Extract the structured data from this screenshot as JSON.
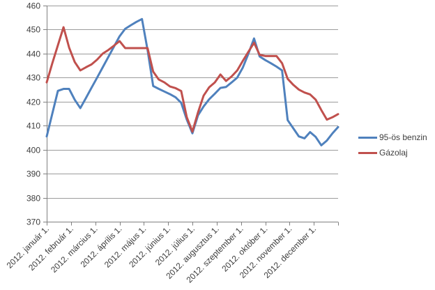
{
  "chart_data": {
    "type": "line",
    "title": "",
    "x_tick_labels": [
      "2012. január 1.",
      "2012. február 1.",
      "2012. március 1.",
      "2012. április 1.",
      "2012. május 1.",
      "2012. június 1.",
      "2012. július 1.",
      "2012. augusztus 1.",
      "2012. szeptember 1.",
      "2012. október 1.",
      "2012. november 1.",
      "2012. december 1."
    ],
    "y_ticks": [
      370,
      380,
      390,
      400,
      410,
      420,
      430,
      440,
      450,
      460
    ],
    "y_range": [
      370,
      460
    ],
    "grid": "horizontal-only",
    "legend_position": "middle-right",
    "series": [
      {
        "name": "95-ös benzin",
        "color": "#4F81BD",
        "values": [
          405.5,
          415,
          424.5,
          425.3,
          425.3,
          420.8,
          417.3,
          421.5,
          425.8,
          430,
          434.3,
          438.6,
          442.9,
          447.2,
          450.3,
          451.8,
          453.2,
          454.4,
          441.5,
          426.5,
          425.3,
          424.2,
          423.1,
          421.8,
          419.5,
          412.5,
          406.8,
          414.3,
          418,
          421,
          423.3,
          425.7,
          426.1,
          428,
          430,
          434.2,
          440,
          446.3,
          438.8,
          437.3,
          436,
          434.6,
          433,
          412.3,
          408.9,
          405.5,
          404.7,
          407.3,
          405.3,
          401.8,
          403.8,
          406.8,
          409.4
        ]
      },
      {
        "name": "Gázolaj",
        "color": "#C0504D",
        "values": [
          428,
          436,
          443.5,
          451,
          442.5,
          436.5,
          433,
          434.3,
          435.5,
          437.5,
          440,
          441.5,
          443.3,
          445.2,
          442.3,
          442.3,
          442.3,
          442.3,
          442.3,
          432.5,
          429.2,
          428,
          426.3,
          425.6,
          424.4,
          413.5,
          407.5,
          415.5,
          422.5,
          426,
          428,
          431.3,
          428.6,
          430.5,
          433,
          437,
          440.8,
          444.5,
          439.5,
          439,
          439,
          439,
          436,
          429.5,
          427,
          425,
          423.8,
          423,
          420.8,
          416.5,
          412.5,
          413.5,
          414.8
        ]
      }
    ]
  },
  "colors": {
    "background": "#FFFFFF",
    "gridline": "#9B9B9B",
    "axis": "#808080",
    "label_text": "#3D3D3D"
  }
}
